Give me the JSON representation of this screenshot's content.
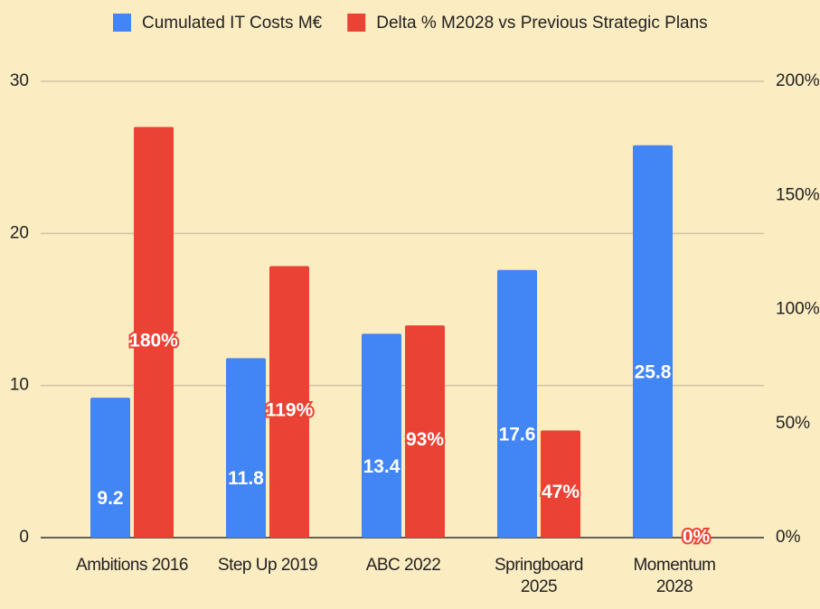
{
  "chart_data": {
    "type": "bar",
    "categories": [
      "Ambitions 2016",
      "Step Up 2019",
      "ABC 2022",
      "Springboard 2025",
      "Momentum 2028"
    ],
    "series": [
      {
        "name": "Cumulated IT Costs M€",
        "color": "#4285f4",
        "values": [
          9.2,
          11.8,
          13.4,
          17.6,
          25.8
        ]
      },
      {
        "name": "Delta % M2028 vs Previous Strategic Plans",
        "color": "#ea4335",
        "axis": "y2",
        "values": [
          180,
          119,
          93,
          47,
          0
        ],
        "value_labels": [
          "180%",
          "119%",
          "93%",
          "47%",
          "0%"
        ]
      }
    ],
    "ylim": [
      0,
      30
    ],
    "yticks": [
      0,
      10,
      20,
      30
    ],
    "y2lim": [
      0,
      200
    ],
    "y2ticks": [
      {
        "value": 0,
        "label": "0%"
      },
      {
        "value": 50,
        "label": "50%"
      },
      {
        "value": 100,
        "label": "100%"
      },
      {
        "value": 150,
        "label": "150%"
      },
      {
        "value": 200,
        "label": "200%"
      }
    ],
    "grid": true,
    "legend": "top"
  }
}
